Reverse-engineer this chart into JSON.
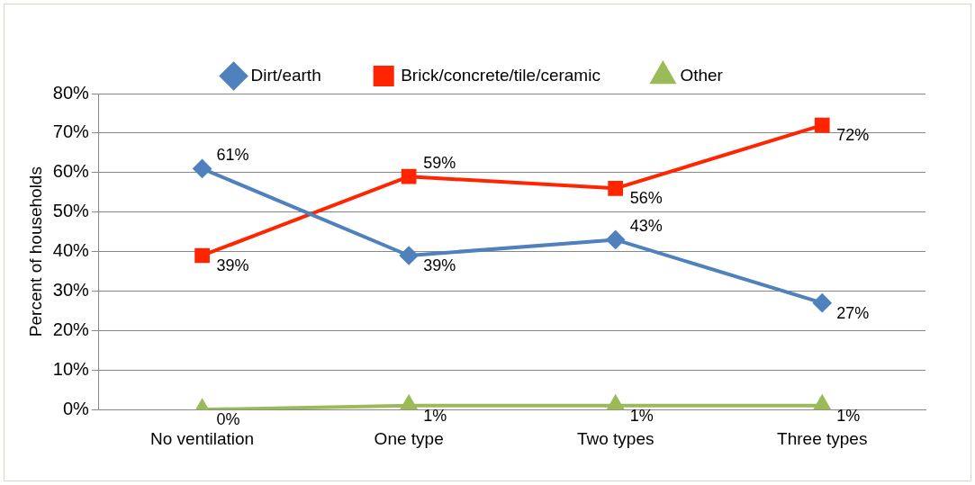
{
  "chart_data": {
    "type": "line",
    "ylabel": "Percent of households",
    "categories": [
      "No ventilation",
      "One type",
      "Two types",
      "Three types"
    ],
    "series": [
      {
        "name": "Dirt/earth",
        "color": "#4f81bd",
        "marker": "diamond",
        "values": [
          61,
          39,
          43,
          27
        ],
        "value_labels": [
          "61%",
          "39%",
          "43%",
          "27%"
        ]
      },
      {
        "name": "Brick/concrete/tile/ceramic",
        "color": "#ff2500",
        "marker": "square",
        "values": [
          39,
          59,
          56,
          72
        ],
        "value_labels": [
          "39%",
          "59%",
          "56%",
          "72%"
        ]
      },
      {
        "name": "Other",
        "color": "#9bbb59",
        "marker": "triangle",
        "values": [
          0,
          1,
          1,
          1
        ],
        "value_labels": [
          "0%",
          "1%",
          "1%",
          "1%"
        ]
      }
    ],
    "ylim": [
      0,
      80
    ],
    "yticks": [
      {
        "value": 0,
        "label": "0%"
      },
      {
        "value": 10,
        "label": "10%"
      },
      {
        "value": 20,
        "label": "20%"
      },
      {
        "value": 30,
        "label": "30%"
      },
      {
        "value": 40,
        "label": "40%"
      },
      {
        "value": 50,
        "label": "50%"
      },
      {
        "value": 60,
        "label": "60%"
      },
      {
        "value": 70,
        "label": "70%"
      },
      {
        "value": 80,
        "label": "80%"
      }
    ],
    "grid": "y",
    "legend": "top"
  }
}
